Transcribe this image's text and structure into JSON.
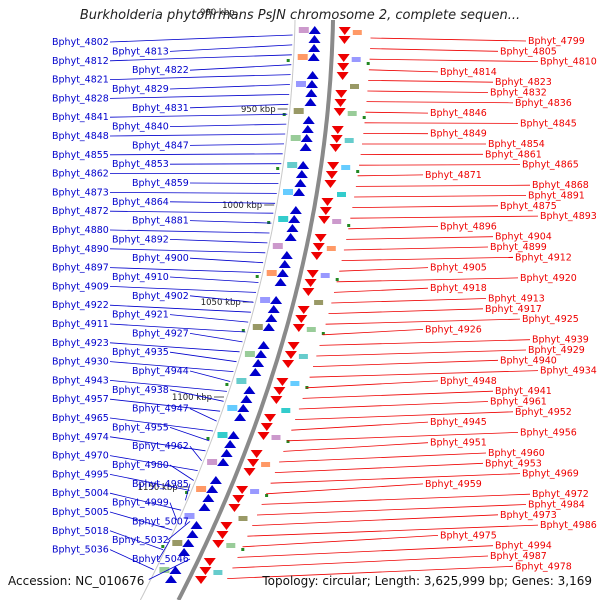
{
  "title": "Burkholderia phytofirmans PsJN chromosome 2, complete sequen...",
  "top_scale_label": "900 kbp",
  "footer": {
    "accession": "Accession: NC_010676",
    "summary": "Topology: circular; Length: 3,625,999 bp; Genes: 3,169"
  },
  "colors": {
    "forward": "#0000cc",
    "reverse": "#ee0000",
    "backbone": "#8a8a8a"
  },
  "scale_ticks": [
    "950 kbp",
    "1000 kbp",
    "1050 kbp",
    "1100 kbp",
    "1150 kbp"
  ],
  "left_labels": [
    {
      "text": "Bphyt_4802"
    },
    {
      "text": "Bphyt_4813"
    },
    {
      "text": "Bphyt_4812"
    },
    {
      "text": "Bphyt_4822"
    },
    {
      "text": "Bphyt_4821"
    },
    {
      "text": "Bphyt_4829"
    },
    {
      "text": "Bphyt_4828"
    },
    {
      "text": "Bphyt_4831"
    },
    {
      "text": "Bphyt_4841"
    },
    {
      "text": "Bphyt_4840"
    },
    {
      "text": "Bphyt_4848"
    },
    {
      "text": "Bphyt_4847"
    },
    {
      "text": "Bphyt_4855"
    },
    {
      "text": "Bphyt_4853"
    },
    {
      "text": "Bphyt_4862"
    },
    {
      "text": "Bphyt_4859"
    },
    {
      "text": "Bphyt_4873"
    },
    {
      "text": "Bphyt_4864"
    },
    {
      "text": "Bphyt_4872"
    },
    {
      "text": "Bphyt_4881"
    },
    {
      "text": "Bphyt_4880"
    },
    {
      "text": "Bphyt_4892"
    },
    {
      "text": "Bphyt_4890"
    },
    {
      "text": "Bphyt_4900"
    },
    {
      "text": "Bphyt_4897"
    },
    {
      "text": "Bphyt_4910"
    },
    {
      "text": "Bphyt_4909"
    },
    {
      "text": "Bphyt_4902"
    },
    {
      "text": "Bphyt_4922"
    },
    {
      "text": "Bphyt_4921"
    },
    {
      "text": "Bphyt_4911"
    },
    {
      "text": "Bphyt_4927"
    },
    {
      "text": "Bphyt_4923"
    },
    {
      "text": "Bphyt_4935"
    },
    {
      "text": "Bphyt_4930"
    },
    {
      "text": "Bphyt_4944"
    },
    {
      "text": "Bphyt_4943"
    },
    {
      "text": "Bphyt_4938"
    },
    {
      "text": "Bphyt_4957"
    },
    {
      "text": "Bphyt_4947"
    },
    {
      "text": "Bphyt_4965"
    },
    {
      "text": "Bphyt_4955"
    },
    {
      "text": "Bphyt_4974"
    },
    {
      "text": "Bphyt_4962"
    },
    {
      "text": "Bphyt_4970"
    },
    {
      "text": "Bphyt_4980"
    },
    {
      "text": "Bphyt_4995"
    },
    {
      "text": "Bphyt_4985"
    },
    {
      "text": "Bphyt_5004"
    },
    {
      "text": "Bphyt_4999"
    },
    {
      "text": "Bphyt_5005"
    },
    {
      "text": "Bphyt_5007"
    },
    {
      "text": "Bphyt_5018"
    },
    {
      "text": "Bphyt_5032"
    },
    {
      "text": "Bphyt_5036"
    },
    {
      "text": "Bphyt_5046"
    }
  ],
  "right_labels": [
    {
      "text": "Bphyt_4799"
    },
    {
      "text": "Bphyt_4805"
    },
    {
      "text": "Bphyt_4810"
    },
    {
      "text": "Bphyt_4814"
    },
    {
      "text": "Bphyt_4823"
    },
    {
      "text": "Bphyt_4832"
    },
    {
      "text": "Bphyt_4836"
    },
    {
      "text": "Bphyt_4846"
    },
    {
      "text": "Bphyt_4845"
    },
    {
      "text": "Bphyt_4849"
    },
    {
      "text": "Bphyt_4854"
    },
    {
      "text": "Bphyt_4861"
    },
    {
      "text": "Bphyt_4865"
    },
    {
      "text": "Bphyt_4871"
    },
    {
      "text": "Bphyt_4868"
    },
    {
      "text": "Bphyt_4891"
    },
    {
      "text": "Bphyt_4875"
    },
    {
      "text": "Bphyt_4893"
    },
    {
      "text": "Bphyt_4896"
    },
    {
      "text": "Bphyt_4904"
    },
    {
      "text": "Bphyt_4899"
    },
    {
      "text": "Bphyt_4912"
    },
    {
      "text": "Bphyt_4905"
    },
    {
      "text": "Bphyt_4920"
    },
    {
      "text": "Bphyt_4918"
    },
    {
      "text": "Bphyt_4913"
    },
    {
      "text": "Bphyt_4917"
    },
    {
      "text": "Bphyt_4925"
    },
    {
      "text": "Bphyt_4926"
    },
    {
      "text": "Bphyt_4939"
    },
    {
      "text": "Bphyt_4929"
    },
    {
      "text": "Bphyt_4940"
    },
    {
      "text": "Bphyt_4934"
    },
    {
      "text": "Bphyt_4948"
    },
    {
      "text": "Bphyt_4941"
    },
    {
      "text": "Bphyt_4961"
    },
    {
      "text": "Bphyt_4952"
    },
    {
      "text": "Bphyt_4945"
    },
    {
      "text": "Bphyt_4956"
    },
    {
      "text": "Bphyt_4951"
    },
    {
      "text": "Bphyt_4960"
    },
    {
      "text": "Bphyt_4953"
    },
    {
      "text": "Bphyt_4969"
    },
    {
      "text": "Bphyt_4959"
    },
    {
      "text": "Bphyt_4972"
    },
    {
      "text": "Bphyt_4984"
    },
    {
      "text": "Bphyt_4973"
    },
    {
      "text": "Bphyt_4986"
    },
    {
      "text": "Bphyt_4975"
    },
    {
      "text": "Bphyt_4994"
    },
    {
      "text": "Bphyt_4987"
    },
    {
      "text": "Bphyt_4978"
    }
  ]
}
